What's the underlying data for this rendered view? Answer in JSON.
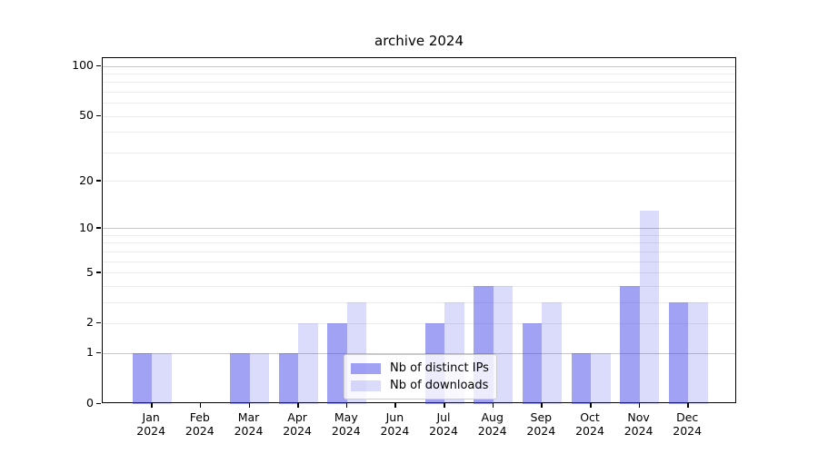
{
  "chart_data": {
    "type": "bar",
    "title": "archive 2024",
    "categories": [
      "Jan 2024",
      "Feb 2024",
      "Mar 2024",
      "Apr 2024",
      "May 2024",
      "Jun 2024",
      "Jul 2024",
      "Aug 2024",
      "Sep 2024",
      "Oct 2024",
      "Nov 2024",
      "Dec 2024"
    ],
    "series": [
      {
        "name": "Nb of distinct IPs",
        "color": "rgba(60,60,235,0.48)",
        "values": [
          1,
          0,
          1,
          1,
          2,
          0,
          2,
          4,
          2,
          1,
          4,
          3
        ]
      },
      {
        "name": "Nb of downloads",
        "color": "rgba(60,60,235,0.185)",
        "values": [
          1,
          0,
          1,
          2,
          3,
          0,
          3,
          4,
          3,
          1,
          13,
          3
        ]
      }
    ],
    "xlabel": "",
    "ylabel": "",
    "yscale": "log1p",
    "ylim": [
      0,
      111
    ],
    "yticks": [
      0,
      1,
      2,
      5,
      10,
      20,
      50,
      100
    ],
    "grid": {
      "major_values": [
        1,
        10,
        100
      ],
      "minor_values": [
        2,
        3,
        4,
        5,
        6,
        7,
        8,
        9,
        20,
        30,
        40,
        50,
        60,
        70,
        80,
        90
      ],
      "major_color": "#c6c6c6",
      "minor_color": "#ebebeb"
    },
    "legend": {
      "position": "lower center",
      "items": [
        "Nb of distinct IPs",
        "Nb of downloads"
      ]
    }
  }
}
